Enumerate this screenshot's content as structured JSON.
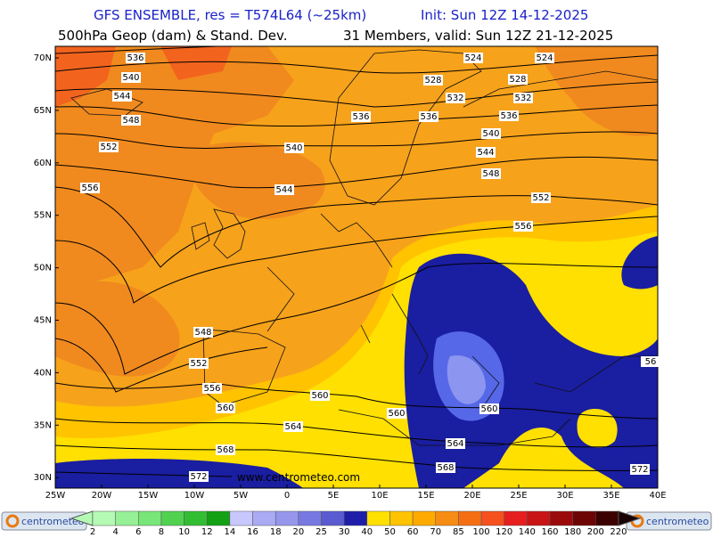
{
  "header": {
    "model": "GFS ENSEMBLE, res = T574L64 (~25km)",
    "init": "Init: Sun 12Z 14-12-2025",
    "field": "500hPa Geop (dam) & Stand. Dev.",
    "members": "31 Members, valid: Sun 12Z 21-12-2025"
  },
  "lat_labels": [
    "70N",
    "65N",
    "60N",
    "55N",
    "50N",
    "45N",
    "40N",
    "35N",
    "30N"
  ],
  "lon_labels": [
    "25W",
    "20W",
    "15W",
    "10W",
    "5W",
    "0",
    "5E",
    "10E",
    "15E",
    "20E",
    "25E",
    "30E",
    "35E",
    "40E"
  ],
  "contour_labels": [
    "536",
    "540",
    "544",
    "548",
    "552",
    "556",
    "524",
    "524",
    "528",
    "528",
    "532",
    "532",
    "536",
    "536",
    "536",
    "540",
    "540",
    "544",
    "544",
    "548",
    "552",
    "556",
    "548",
    "552",
    "556",
    "560",
    "560",
    "560",
    "560",
    "564",
    "564",
    "568",
    "568",
    "572",
    "572",
    "56"
  ],
  "watermark": "www.centrometeo.com",
  "colorbar": {
    "labels": [
      2,
      4,
      6,
      8,
      10,
      12,
      14,
      16,
      18,
      20,
      25,
      30,
      40,
      50,
      60,
      70,
      85,
      100,
      120,
      140,
      160,
      180,
      200,
      220
    ]
  },
  "footer": {
    "logo_left": "centrometeo",
    "logo_right": "centrometeo"
  }
}
